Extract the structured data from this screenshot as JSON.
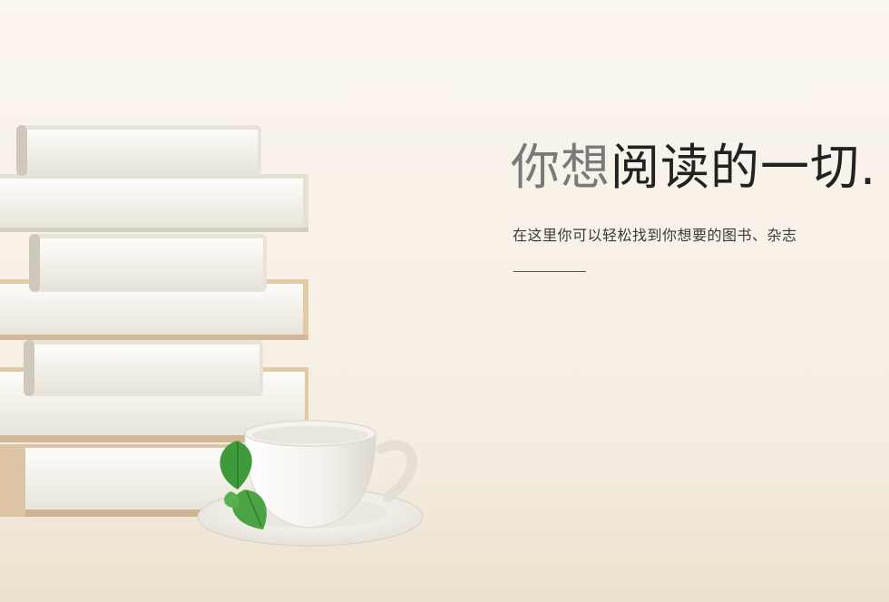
{
  "hero": {
    "headline_light": "你想",
    "headline_dark": "阅读的一切.",
    "subtitle": "在这里你可以轻松找到你想要的图书、杂志"
  },
  "colors": {
    "background": "#f7f0e6",
    "headline_light": "#7a7a7a",
    "headline_dark": "#222222",
    "divider": "#555555"
  },
  "icons": [
    "book-stack-illustration",
    "coffee-cup-icon",
    "mint-leaf-icon"
  ]
}
